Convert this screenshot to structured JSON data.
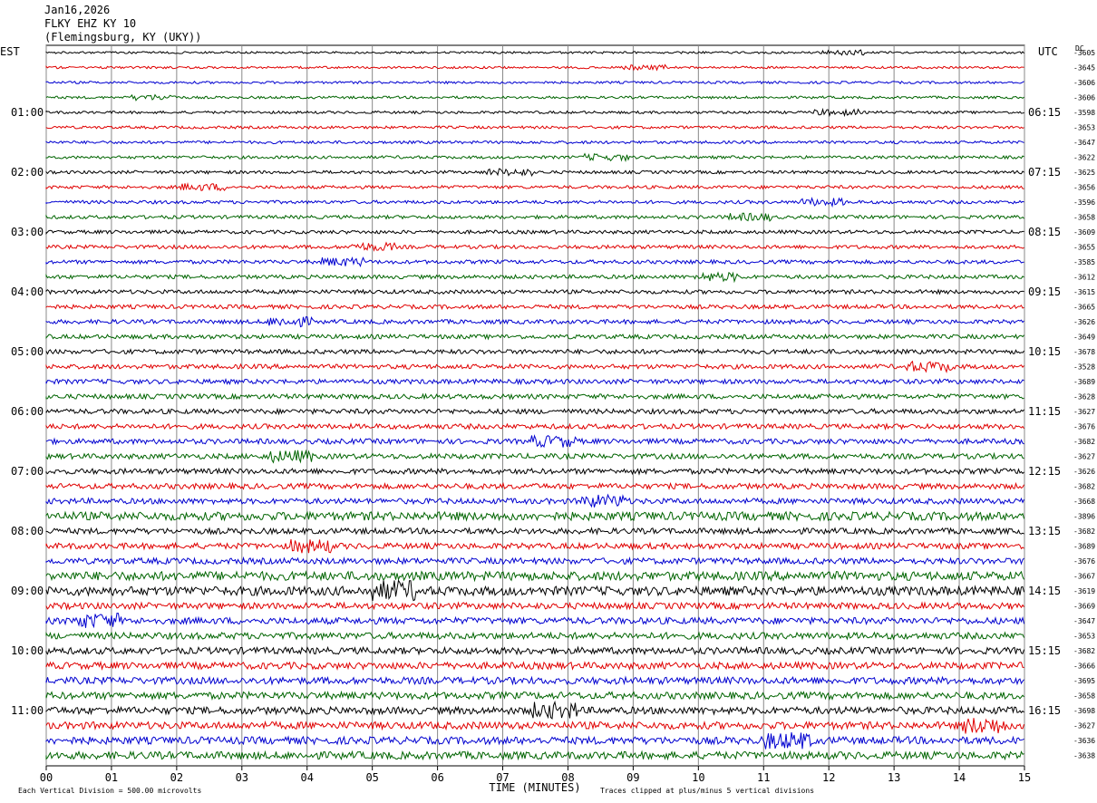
{
  "header": {
    "date": "Jan16,2026",
    "station": "FLKY EHZ KY 10",
    "location": "(Flemingsburg, KY (UKY))"
  },
  "labels": {
    "left_timezone": "EST",
    "right_timezone": "UTC",
    "dc_header": "DC"
  },
  "chart_data": {
    "type": "line",
    "title": "",
    "xlabel": "TIME (MINUTES)",
    "ylabel": "",
    "x_range": [
      0,
      15
    ],
    "x_ticks": [
      "00",
      "01",
      "02",
      "03",
      "04",
      "05",
      "06",
      "07",
      "08",
      "09",
      "10",
      "11",
      "12",
      "13",
      "14",
      "15"
    ],
    "trace_colors": [
      "#000000",
      "#e00000",
      "#0000d0",
      "#006400"
    ],
    "trace_count": 48,
    "left_hour_labels": [
      "01:00",
      "02:00",
      "03:00",
      "04:00",
      "05:00",
      "06:00",
      "07:00",
      "08:00",
      "09:00",
      "10:00",
      "11:00"
    ],
    "right_hour_labels": [
      "06:15",
      "07:15",
      "08:15",
      "09:15",
      "10:15",
      "11:15",
      "12:15",
      "13:15",
      "14:15",
      "15:15",
      "16:15"
    ],
    "dc_offsets": [
      "-3605",
      "-3645",
      "-3606",
      "-3606",
      "-3598",
      "-3653",
      "-3647",
      "-3622",
      "-3625",
      "-3656",
      "-3596",
      "-3658",
      "-3609",
      "-3655",
      "-3585",
      "-3612",
      "-3615",
      "-3665",
      "-3626",
      "-3649",
      "-3678",
      "-3528",
      "-3689",
      "-3628",
      "-3627",
      "-3676",
      "-3682",
      "-3627",
      "-3626",
      "-3682",
      "-3668",
      "-3896",
      "-3682",
      "-3689",
      "-3676",
      "-3667",
      "-3619",
      "-3669",
      "-3647",
      "-3653",
      "-3682",
      "-3666",
      "-3695",
      "-3658",
      "-3698",
      "-3627",
      "-3636",
      "-3638"
    ],
    "grid": "vertical lines at each minute",
    "legend": "none"
  },
  "footer": {
    "scale_note": "Each Vertical Division =  500.00 microvolts",
    "clip_note": "Traces clipped at plus/minus 5 vertical divisions"
  }
}
